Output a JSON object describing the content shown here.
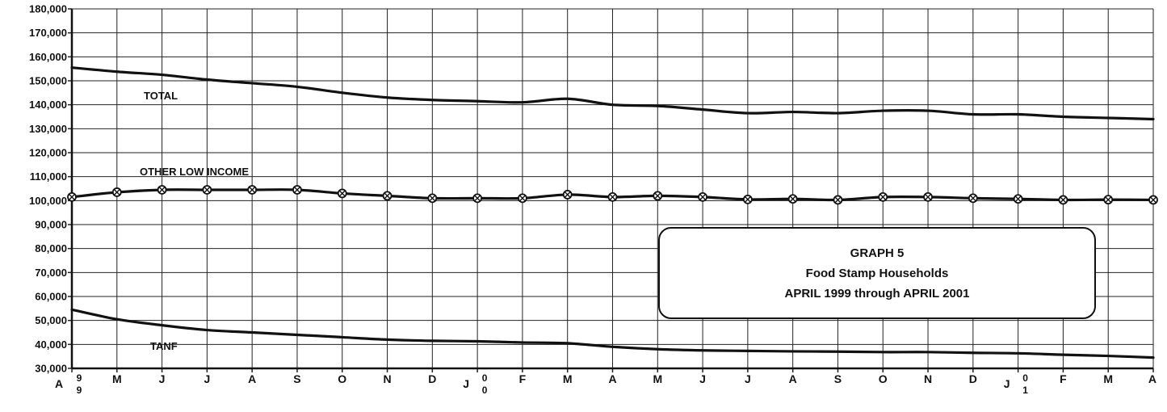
{
  "chart_data": {
    "type": "line",
    "y_tick_labels": [
      "180,000",
      "170,000",
      "160,000",
      "150,000",
      "140,000",
      "130,000",
      "120,000",
      "110,000",
      "100,000",
      "90,000",
      "80,000",
      "70,000",
      "60,000",
      "50,000",
      "40,000",
      "30,000"
    ],
    "ylim": [
      30000,
      180000
    ],
    "grid": true,
    "x_month_letters": [
      "A",
      "M",
      "J",
      "J",
      "A",
      "S",
      "O",
      "N",
      "D",
      "J",
      "F",
      "M",
      "A",
      "M",
      "J",
      "J",
      "A",
      "S",
      "O",
      "N",
      "D",
      "J",
      "F",
      "M",
      "A"
    ],
    "x_year_digits": [
      {
        "index": 0,
        "top": "9",
        "bottom": "9"
      },
      {
        "index": 9,
        "top": "0",
        "bottom": "0"
      },
      {
        "index": 21,
        "top": "0",
        "bottom": "1"
      }
    ],
    "series": [
      {
        "name": "TOTAL",
        "values": [
          155500,
          153800,
          152500,
          150500,
          149000,
          147500,
          145000,
          143000,
          142000,
          141500,
          141000,
          142500,
          140000,
          139500,
          138000,
          136500,
          137000,
          136500,
          137500,
          137500,
          136000,
          136000,
          135000,
          134500,
          134000
        ]
      },
      {
        "name": "OTHER LOW INCOME",
        "values": [
          101500,
          103500,
          104500,
          104500,
          104500,
          104500,
          103000,
          102000,
          101000,
          101000,
          101000,
          102500,
          101500,
          102000,
          101500,
          100500,
          100700,
          100300,
          101500,
          101500,
          101000,
          100700,
          100300,
          100400,
          100300
        ]
      },
      {
        "name": "TANF",
        "values": [
          54500,
          50500,
          48000,
          46000,
          45000,
          44000,
          43000,
          42000,
          41500,
          41300,
          40800,
          40500,
          39000,
          38000,
          37500,
          37300,
          37100,
          37000,
          36800,
          36800,
          36500,
          36300,
          35700,
          35200,
          34500
        ]
      }
    ]
  },
  "info_box": {
    "line1": "GRAPH 5",
    "line2": "Food Stamp Households",
    "line3": "APRIL 1999 through APRIL 2001"
  },
  "colors": {
    "line": "#111111",
    "grid": "#222222",
    "background": "#ffffff"
  }
}
